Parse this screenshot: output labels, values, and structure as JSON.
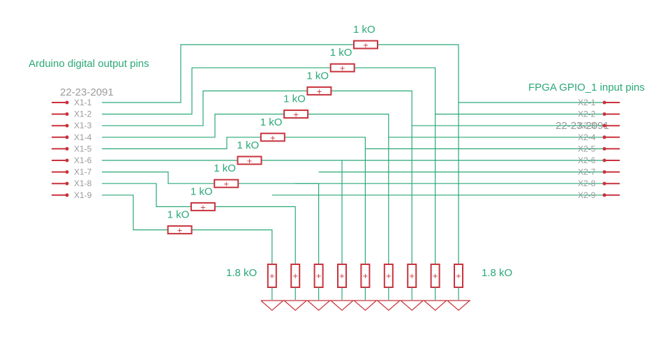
{
  "titles": {
    "left": "Arduino digital output pins",
    "right": "FPGA GPIO_1 input pins"
  },
  "connectors": {
    "left_part": "22-23-2091",
    "right_part": "22-23-2091",
    "left_pins": [
      "X1-1",
      "X1-2",
      "X1-3",
      "X1-4",
      "X1-5",
      "X1-6",
      "X1-7",
      "X1-8",
      "X1-9"
    ],
    "right_pins": [
      "X2-1",
      "X2-2",
      "X2-3",
      "X2-4",
      "X2-5",
      "X2-6",
      "X2-7",
      "X2-8",
      "X2-9"
    ]
  },
  "resistors": {
    "series_value": "1 kO",
    "pulldown_value": "1.8 kO",
    "pulldown_left_label": "1.8 kO",
    "pulldown_right_label": "1.8 kO",
    "mark": "+"
  },
  "colors": {
    "wire": "#2aa877",
    "component": "#c8323c",
    "label": "#9a9a9a"
  }
}
